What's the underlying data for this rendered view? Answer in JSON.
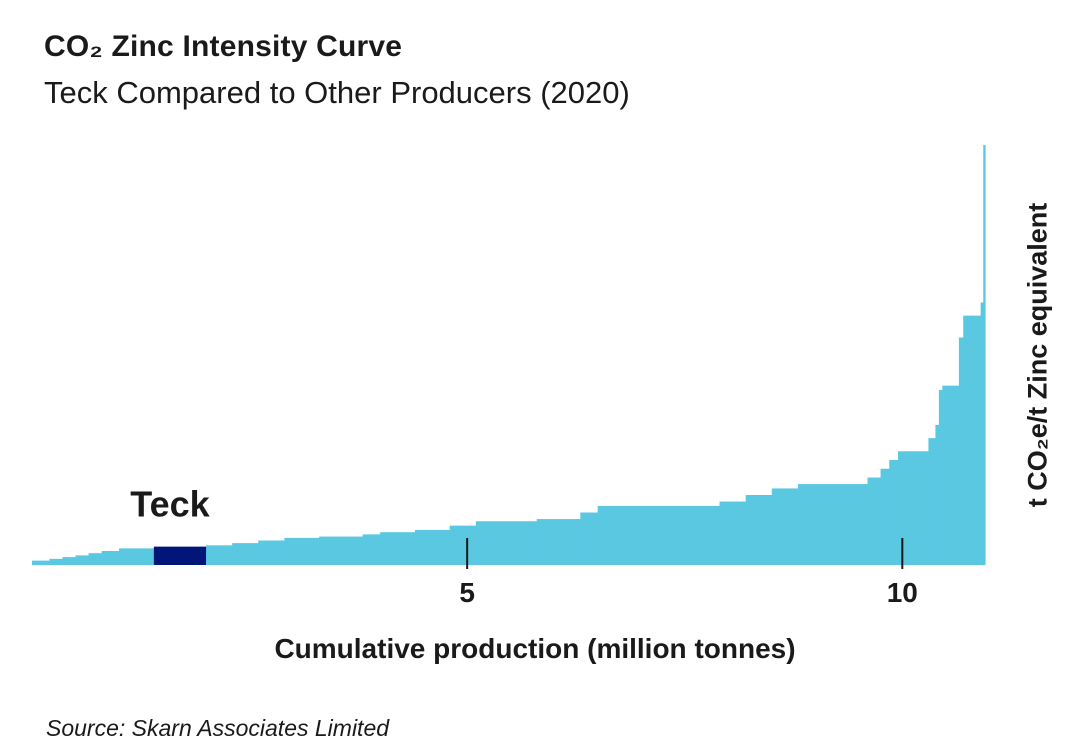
{
  "title": "CO₂ Zinc Intensity Curve",
  "subtitle": "Teck Compared to Other Producers (2020)",
  "source": "Source: Skarn Associates Limited",
  "colors": {
    "bars": "#5BC8E2",
    "highlight": "#021578",
    "axis_text": "#1a1a1a"
  },
  "chart_data": {
    "type": "bar",
    "subtype": "cost-curve (variable-width bars)",
    "title": "CO₂ Zinc Intensity Curve",
    "subtitle": "Teck Compared to Other Producers (2020)",
    "xlabel": "Cumulative production (million tonnes)",
    "ylabel": "t CO₂e/t Zinc equivalent",
    "xlim": [
      0,
      10.95
    ],
    "ylim": [
      0,
      9.6
    ],
    "xticks": [
      5,
      10
    ],
    "xtick_labels": [
      "5",
      "10"
    ],
    "grid": false,
    "legend": "none",
    "highlight": {
      "label": "Teck",
      "x0": 1.4,
      "x1": 2.0,
      "value": 0.42
    },
    "segments": [
      {
        "x0": 0.0,
        "x1": 0.2,
        "value": 0.1
      },
      {
        "x0": 0.2,
        "x1": 0.35,
        "value": 0.14
      },
      {
        "x0": 0.35,
        "x1": 0.5,
        "value": 0.18
      },
      {
        "x0": 0.5,
        "x1": 0.65,
        "value": 0.22
      },
      {
        "x0": 0.65,
        "x1": 0.8,
        "value": 0.27
      },
      {
        "x0": 0.8,
        "x1": 1.0,
        "value": 0.32
      },
      {
        "x0": 1.0,
        "x1": 1.4,
        "value": 0.38
      },
      {
        "x0": 1.4,
        "x1": 2.0,
        "value": 0.42
      },
      {
        "x0": 2.0,
        "x1": 2.3,
        "value": 0.45
      },
      {
        "x0": 2.3,
        "x1": 2.6,
        "value": 0.5
      },
      {
        "x0": 2.6,
        "x1": 2.9,
        "value": 0.56
      },
      {
        "x0": 2.9,
        "x1": 3.3,
        "value": 0.62
      },
      {
        "x0": 3.3,
        "x1": 3.8,
        "value": 0.65
      },
      {
        "x0": 3.8,
        "x1": 4.0,
        "value": 0.7
      },
      {
        "x0": 4.0,
        "x1": 4.4,
        "value": 0.75
      },
      {
        "x0": 4.4,
        "x1": 4.8,
        "value": 0.8
      },
      {
        "x0": 4.8,
        "x1": 5.1,
        "value": 0.9
      },
      {
        "x0": 5.1,
        "x1": 5.8,
        "value": 1.0
      },
      {
        "x0": 5.8,
        "x1": 6.3,
        "value": 1.05
      },
      {
        "x0": 6.3,
        "x1": 6.5,
        "value": 1.2
      },
      {
        "x0": 6.5,
        "x1": 7.9,
        "value": 1.35
      },
      {
        "x0": 7.9,
        "x1": 8.2,
        "value": 1.45
      },
      {
        "x0": 8.2,
        "x1": 8.5,
        "value": 1.6
      },
      {
        "x0": 8.5,
        "x1": 8.8,
        "value": 1.75
      },
      {
        "x0": 8.8,
        "x1": 9.6,
        "value": 1.85
      },
      {
        "x0": 9.6,
        "x1": 9.75,
        "value": 2.0
      },
      {
        "x0": 9.75,
        "x1": 9.85,
        "value": 2.2
      },
      {
        "x0": 9.85,
        "x1": 9.95,
        "value": 2.4
      },
      {
        "x0": 9.95,
        "x1": 10.3,
        "value": 2.6
      },
      {
        "x0": 10.3,
        "x1": 10.38,
        "value": 2.9
      },
      {
        "x0": 10.38,
        "x1": 10.42,
        "value": 3.2
      },
      {
        "x0": 10.42,
        "x1": 10.46,
        "value": 4.0
      },
      {
        "x0": 10.46,
        "x1": 10.65,
        "value": 4.1
      },
      {
        "x0": 10.65,
        "x1": 10.7,
        "value": 5.2
      },
      {
        "x0": 10.7,
        "x1": 10.9,
        "value": 5.7
      },
      {
        "x0": 10.9,
        "x1": 10.93,
        "value": 6.0
      },
      {
        "x0": 10.93,
        "x1": 10.95,
        "value": 9.6
      }
    ]
  }
}
